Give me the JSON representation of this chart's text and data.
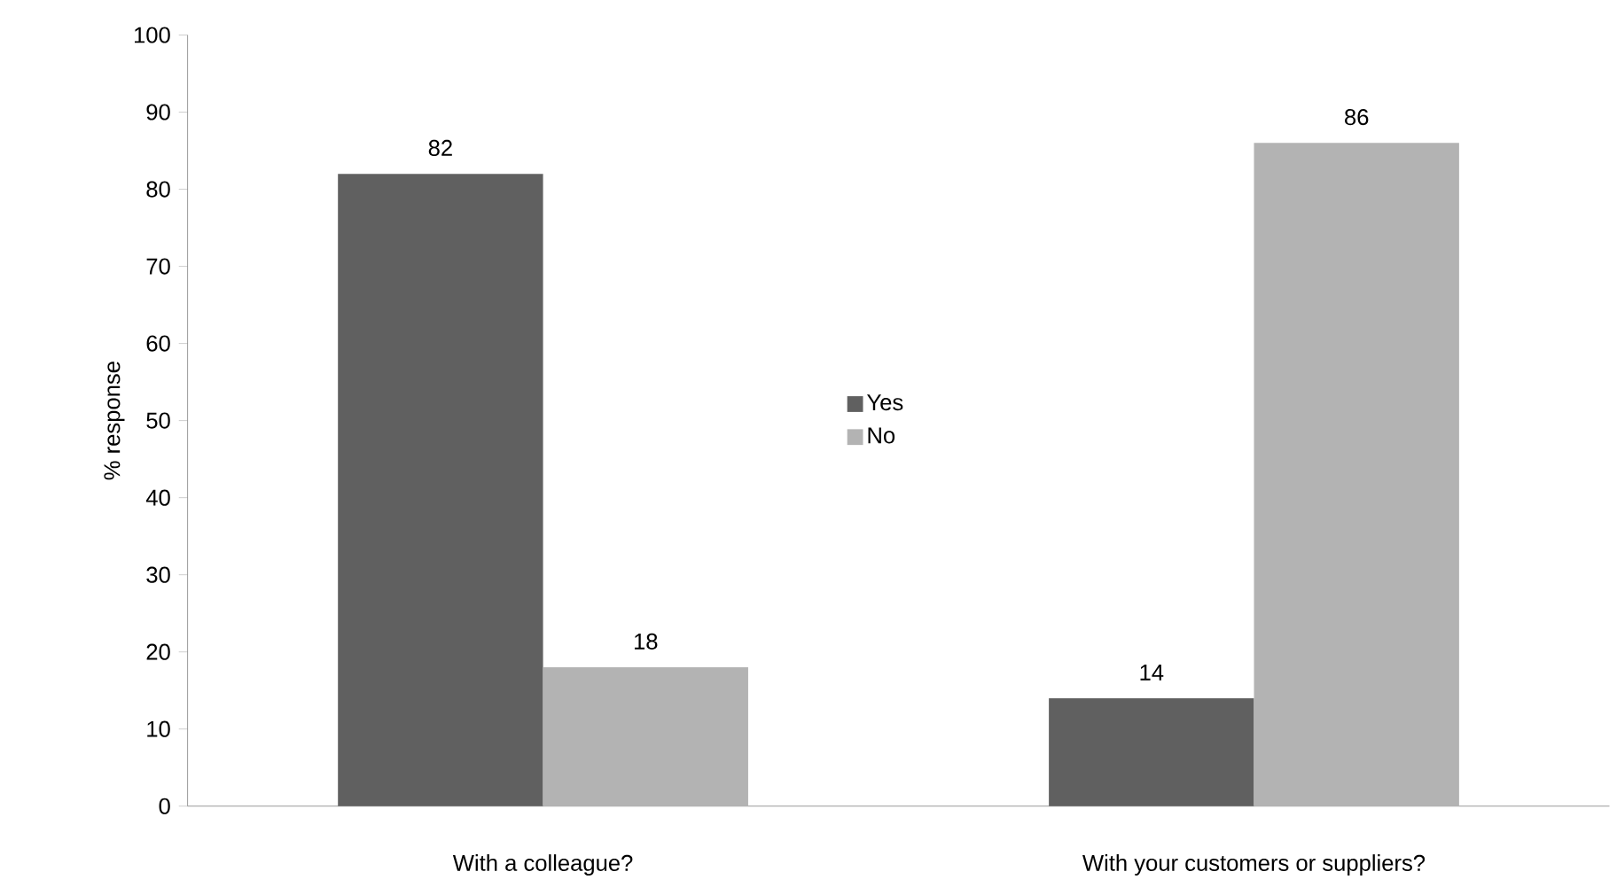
{
  "chart_data": {
    "type": "bar",
    "ylabel": "% response",
    "categories": [
      "With a colleague?",
      "With your customers or suppliers?"
    ],
    "series": [
      {
        "name": "Yes",
        "color": "#606060",
        "values": [
          82,
          14
        ]
      },
      {
        "name": "No",
        "color": "#b3b3b3",
        "values": [
          18,
          86
        ]
      }
    ],
    "ylim": [
      0,
      100
    ],
    "yticks": [
      0,
      10,
      20,
      30,
      40,
      50,
      60,
      70,
      80,
      90,
      100
    ],
    "grid": false,
    "legend": "center",
    "data_labels": true
  }
}
